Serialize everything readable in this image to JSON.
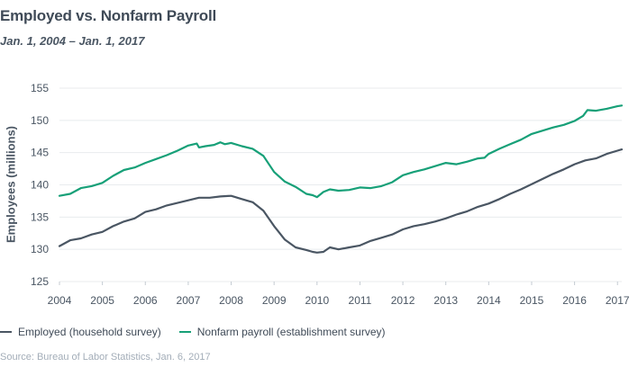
{
  "title": "Employed vs. Nonfarm Payroll",
  "subtitle": "Jan. 1, 2004 – Jan. 1, 2017",
  "source": "Source: Bureau of Labor Statistics, Jan. 6, 2017",
  "colors": {
    "employed": "#4a5663",
    "payroll": "#17a078",
    "grid": "#e8ebee"
  },
  "chart_data": {
    "type": "line",
    "ylabel": "Employees (millions)",
    "xlabel": "",
    "xlim": [
      2004.0,
      2017.1
    ],
    "ylim": [
      125,
      155
    ],
    "yticks": [
      125,
      130,
      135,
      140,
      145,
      150,
      155
    ],
    "xticks": [
      2004,
      2005,
      2006,
      2007,
      2008,
      2009,
      2010,
      2011,
      2012,
      2013,
      2014,
      2015,
      2016,
      2017
    ],
    "grid": true,
    "legend_position": "bottom-left",
    "series": [
      {
        "name": "Employed (household survey)",
        "color": "#4a5663",
        "x": [
          2004.0,
          2004.25,
          2004.5,
          2004.75,
          2005.0,
          2005.25,
          2005.5,
          2005.75,
          2006.0,
          2006.25,
          2006.5,
          2006.75,
          2007.0,
          2007.25,
          2007.5,
          2007.75,
          2008.0,
          2008.25,
          2008.5,
          2008.75,
          2009.0,
          2009.25,
          2009.5,
          2009.75,
          2009.9,
          2010.0,
          2010.15,
          2010.3,
          2010.5,
          2010.75,
          2011.0,
          2011.25,
          2011.5,
          2011.75,
          2012.0,
          2012.25,
          2012.5,
          2012.75,
          2013.0,
          2013.25,
          2013.5,
          2013.75,
          2014.0,
          2014.25,
          2014.5,
          2014.75,
          2015.0,
          2015.25,
          2015.5,
          2015.75,
          2016.0,
          2016.25,
          2016.5,
          2016.75,
          2017.0,
          2017.1
        ],
        "y": [
          130.5,
          131.4,
          131.7,
          132.3,
          132.7,
          133.6,
          134.3,
          134.8,
          135.8,
          136.2,
          136.8,
          137.2,
          137.6,
          138.0,
          138.0,
          138.2,
          138.3,
          137.8,
          137.3,
          136.0,
          133.6,
          131.5,
          130.3,
          129.9,
          129.6,
          129.5,
          129.6,
          130.3,
          130.0,
          130.3,
          130.6,
          131.3,
          131.8,
          132.3,
          133.1,
          133.6,
          133.9,
          134.3,
          134.8,
          135.4,
          135.9,
          136.6,
          137.1,
          137.8,
          138.6,
          139.3,
          140.1,
          140.9,
          141.7,
          142.4,
          143.2,
          143.8,
          144.1,
          144.8,
          145.3,
          145.5
        ]
      },
      {
        "name": "Nonfarm payroll (establishment survey)",
        "color": "#17a078",
        "x": [
          2004.0,
          2004.25,
          2004.5,
          2004.75,
          2005.0,
          2005.25,
          2005.5,
          2005.75,
          2006.0,
          2006.25,
          2006.5,
          2006.75,
          2007.0,
          2007.2,
          2007.25,
          2007.4,
          2007.6,
          2007.75,
          2007.85,
          2008.0,
          2008.25,
          2008.5,
          2008.75,
          2009.0,
          2009.25,
          2009.5,
          2009.75,
          2009.9,
          2010.0,
          2010.15,
          2010.3,
          2010.5,
          2010.75,
          2011.0,
          2011.25,
          2011.5,
          2011.75,
          2012.0,
          2012.25,
          2012.5,
          2012.75,
          2013.0,
          2013.25,
          2013.5,
          2013.75,
          2013.9,
          2014.0,
          2014.25,
          2014.5,
          2014.75,
          2015.0,
          2015.25,
          2015.5,
          2015.75,
          2016.0,
          2016.2,
          2016.3,
          2016.5,
          2016.75,
          2017.0,
          2017.1
        ],
        "y": [
          138.3,
          138.6,
          139.5,
          139.8,
          140.3,
          141.4,
          142.3,
          142.7,
          143.4,
          144.0,
          144.6,
          145.3,
          146.1,
          146.4,
          145.8,
          146.0,
          146.2,
          146.6,
          146.3,
          146.5,
          146.0,
          145.6,
          144.5,
          142.0,
          140.5,
          139.7,
          138.6,
          138.4,
          138.1,
          138.9,
          139.3,
          139.1,
          139.2,
          139.6,
          139.5,
          139.8,
          140.4,
          141.5,
          142.0,
          142.4,
          142.9,
          143.4,
          143.2,
          143.6,
          144.1,
          144.2,
          144.8,
          145.6,
          146.3,
          147.0,
          147.9,
          148.4,
          148.9,
          149.3,
          149.9,
          150.7,
          151.6,
          151.5,
          151.8,
          152.2,
          152.3
        ]
      }
    ]
  }
}
